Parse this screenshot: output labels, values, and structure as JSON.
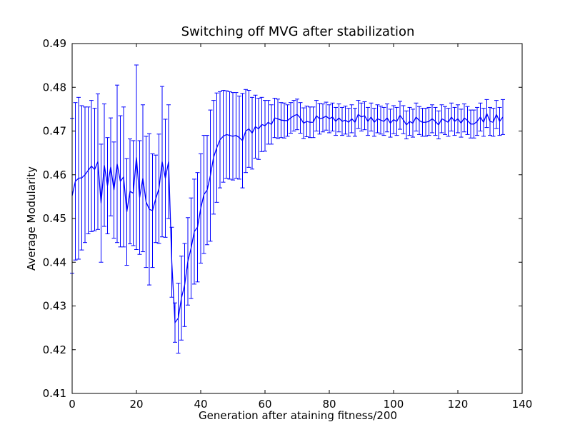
{
  "chart_data": {
    "type": "line",
    "title": "Switching off MVG after stabilization",
    "xlabel": "Generation after ataining fitness/200",
    "ylabel": "Average Modularity",
    "xlim": [
      0,
      140
    ],
    "ylim": [
      0.41,
      0.49
    ],
    "xticks": [
      "0",
      "20",
      "40",
      "60",
      "80",
      "100",
      "120",
      "140"
    ],
    "yticks": [
      "0.41",
      "0.42",
      "0.43",
      "0.44",
      "0.45",
      "0.46",
      "0.47",
      "0.48",
      "0.49"
    ],
    "grid": false,
    "line_color": "#0000ff",
    "series": [
      {
        "x": [
          0,
          1,
          2,
          3,
          4,
          5,
          6,
          7,
          8,
          9,
          10,
          11,
          12,
          13,
          14,
          15,
          16,
          17,
          18,
          19,
          20,
          21,
          22,
          23,
          24,
          25,
          26,
          27,
          28,
          29,
          30,
          31,
          32,
          33,
          34,
          35,
          36,
          37,
          38,
          39,
          40,
          41,
          42,
          43,
          44,
          45,
          46,
          47,
          48,
          49,
          50,
          51,
          52,
          53,
          54,
          55,
          56,
          57,
          58,
          59,
          60,
          61,
          62,
          63,
          64,
          65,
          66,
          67,
          68,
          69,
          70,
          71,
          72,
          73,
          74,
          75,
          76,
          77,
          78,
          79,
          80,
          81,
          82,
          83,
          84,
          85,
          86,
          87,
          88,
          89,
          90,
          91,
          92,
          93,
          94,
          95,
          96,
          97,
          98,
          99,
          100,
          101,
          102,
          103,
          104,
          105,
          106,
          107,
          108,
          109,
          110,
          111,
          112,
          113,
          114,
          115,
          116,
          117,
          118,
          119,
          120,
          121,
          122,
          123,
          124,
          125,
          126,
          127,
          128,
          129,
          130,
          131,
          132,
          133,
          134
        ],
        "y": [
          0.4552,
          0.4585,
          0.4592,
          0.4593,
          0.46,
          0.461,
          0.462,
          0.4612,
          0.463,
          0.4535,
          0.4622,
          0.4575,
          0.4618,
          0.4565,
          0.4625,
          0.4585,
          0.4595,
          0.4515,
          0.4562,
          0.4558,
          0.464,
          0.4548,
          0.4592,
          0.4538,
          0.4521,
          0.4518,
          0.4545,
          0.4568,
          0.463,
          0.4592,
          0.463,
          0.44,
          0.4262,
          0.4272,
          0.4318,
          0.4348,
          0.4402,
          0.4432,
          0.447,
          0.448,
          0.4523,
          0.4555,
          0.4565,
          0.4598,
          0.464,
          0.4662,
          0.468,
          0.4688,
          0.4692,
          0.469,
          0.4688,
          0.469,
          0.4685,
          0.4678,
          0.47,
          0.4705,
          0.4695,
          0.471,
          0.4705,
          0.4715,
          0.4712,
          0.472,
          0.4715,
          0.473,
          0.4728,
          0.4725,
          0.4724,
          0.4724,
          0.473,
          0.4735,
          0.4738,
          0.473,
          0.4718,
          0.4722,
          0.472,
          0.472,
          0.4735,
          0.4728,
          0.473,
          0.4734,
          0.4728,
          0.4732,
          0.4722,
          0.473,
          0.4722,
          0.4725,
          0.472,
          0.4728,
          0.472,
          0.4738,
          0.4732,
          0.4735,
          0.4722,
          0.4732,
          0.472,
          0.4728,
          0.4725,
          0.4722,
          0.473,
          0.4718,
          0.4726,
          0.4722,
          0.4736,
          0.4726,
          0.4714,
          0.4722,
          0.4718,
          0.4732,
          0.4724,
          0.472,
          0.472,
          0.4722,
          0.4728,
          0.4722,
          0.4714,
          0.4728,
          0.4724,
          0.472,
          0.4732,
          0.4722,
          0.4728,
          0.4718,
          0.473,
          0.4724,
          0.4716,
          0.4716,
          0.4722,
          0.4732,
          0.472,
          0.474,
          0.4722,
          0.472,
          0.4738,
          0.4722,
          0.4732
        ],
        "err": [
          0.0177,
          0.018,
          0.0185,
          0.0165,
          0.0155,
          0.0145,
          0.015,
          0.014,
          0.0155,
          0.0135,
          0.014,
          0.011,
          0.0112,
          0.011,
          0.018,
          0.015,
          0.016,
          0.0122,
          0.012,
          0.012,
          0.0211,
          0.013,
          0.0168,
          0.015,
          0.0173,
          0.013,
          0.01,
          0.0125,
          0.0172,
          0.0135,
          0.013,
          0.008,
          0.0045,
          0.008,
          0.0096,
          0.0095,
          0.01,
          0.0115,
          0.012,
          0.0125,
          0.0125,
          0.0135,
          0.0125,
          0.015,
          0.013,
          0.0125,
          0.011,
          0.0105,
          0.01,
          0.01,
          0.01,
          0.0098,
          0.0095,
          0.0108,
          0.0095,
          0.0088,
          0.0082,
          0.0072,
          0.007,
          0.0062,
          0.0058,
          0.005,
          0.0045,
          0.0045,
          0.0045,
          0.004,
          0.004,
          0.0036,
          0.0035,
          0.0035,
          0.0035,
          0.0035,
          0.0035,
          0.0035,
          0.0035,
          0.0035,
          0.0035,
          0.0035,
          0.0032,
          0.0032,
          0.0032,
          0.0032,
          0.0032,
          0.0032,
          0.0032,
          0.0032,
          0.0032,
          0.0032,
          0.0032,
          0.0032,
          0.0032,
          0.0032,
          0.0032,
          0.0032,
          0.0032,
          0.0032,
          0.0032,
          0.0032,
          0.0032,
          0.0032,
          0.0032,
          0.0032,
          0.0032,
          0.0032,
          0.0032,
          0.0032,
          0.0032,
          0.0032,
          0.0032,
          0.0032,
          0.0032,
          0.0032,
          0.0032,
          0.0032,
          0.0032,
          0.0032,
          0.0032,
          0.0032,
          0.0032,
          0.0032,
          0.0032,
          0.0032,
          0.0032,
          0.0032,
          0.0032,
          0.0032,
          0.0032,
          0.0032,
          0.0032,
          0.0032,
          0.0032,
          0.0032,
          0.0032,
          0.0032,
          0.004
        ]
      }
    ]
  }
}
